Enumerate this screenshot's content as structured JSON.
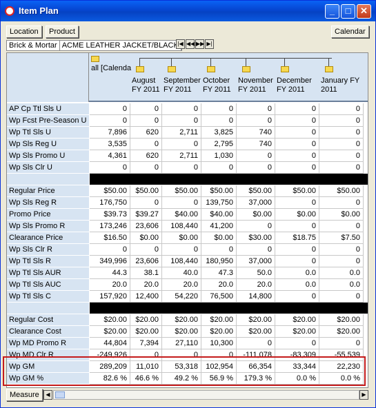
{
  "window": {
    "title": "Item Plan"
  },
  "toolbar": {
    "location": "Location",
    "product": "Product",
    "calendar": "Calendar"
  },
  "context": {
    "channel": "Brick & Mortar",
    "item": "ACME LEATHER JACKET/BLACK"
  },
  "nav": [
    "⏮",
    "⏪",
    "⏩",
    "⏭"
  ],
  "columns": [
    {
      "top": "all [Calenda",
      "line1": "",
      "line2": ""
    },
    {
      "top": "",
      "line1": "August",
      "line2": "FY 2011"
    },
    {
      "top": "",
      "line1": "September",
      "line2": "FY 2011"
    },
    {
      "top": "",
      "line1": "October",
      "line2": "FY 2011"
    },
    {
      "top": "",
      "line1": "November",
      "line2": "FY 2011"
    },
    {
      "top": "",
      "line1": "December",
      "line2": "FY 2011"
    },
    {
      "top": "",
      "line1": "January FY",
      "line2": "2011"
    }
  ],
  "rows": [
    {
      "label": "AP Cp Ttl Sls U",
      "values": [
        "0",
        "0",
        "0",
        "0",
        "0",
        "0",
        "0"
      ]
    },
    {
      "label": "Wp Fcst Pre-Season U",
      "values": [
        "0",
        "0",
        "0",
        "0",
        "0",
        "0",
        "0"
      ]
    },
    {
      "label": "Wp Ttl Sls U",
      "values": [
        "7,896",
        "620",
        "2,711",
        "3,825",
        "740",
        "0",
        "0"
      ]
    },
    {
      "label": "Wp Sls Reg U",
      "values": [
        "3,535",
        "0",
        "0",
        "2,795",
        "740",
        "0",
        "0"
      ]
    },
    {
      "label": "Wp Sls Promo U",
      "values": [
        "4,361",
        "620",
        "2,711",
        "1,030",
        "0",
        "0",
        "0"
      ]
    },
    {
      "label": "Wp Sls Clr U",
      "values": [
        "0",
        "0",
        "0",
        "0",
        "0",
        "0",
        "0"
      ]
    },
    {
      "label": "",
      "values": null
    },
    {
      "label": "Regular Price",
      "values": [
        "$50.00",
        "$50.00",
        "$50.00",
        "$50.00",
        "$50.00",
        "$50.00",
        "$50.00"
      ]
    },
    {
      "label": "Wp Sls Reg R",
      "values": [
        "176,750",
        "0",
        "0",
        "139,750",
        "37,000",
        "0",
        "0"
      ]
    },
    {
      "label": "Promo Price",
      "values": [
        "$39.73",
        "$39.27",
        "$40.00",
        "$40.00",
        "$0.00",
        "$0.00",
        "$0.00"
      ]
    },
    {
      "label": "Wp Sls Promo R",
      "values": [
        "173,246",
        "23,606",
        "108,440",
        "41,200",
        "0",
        "0",
        "0"
      ]
    },
    {
      "label": "Clearance Price",
      "values": [
        "$16.50",
        "$0.00",
        "$0.00",
        "$0.00",
        "$30.00",
        "$18.75",
        "$7.50"
      ]
    },
    {
      "label": "Wp Sls Clr R",
      "values": [
        "0",
        "0",
        "0",
        "0",
        "0",
        "0",
        "0"
      ]
    },
    {
      "label": "Wp Ttl Sls R",
      "values": [
        "349,996",
        "23,606",
        "108,440",
        "180,950",
        "37,000",
        "0",
        "0"
      ]
    },
    {
      "label": "Wp Ttl Sls AUR",
      "values": [
        "44.3",
        "38.1",
        "40.0",
        "47.3",
        "50.0",
        "0.0",
        "0.0"
      ]
    },
    {
      "label": "Wp Ttl Sls AUC",
      "values": [
        "20.0",
        "20.0",
        "20.0",
        "20.0",
        "20.0",
        "0.0",
        "0.0"
      ]
    },
    {
      "label": "Wp Ttl Sls C",
      "values": [
        "157,920",
        "12,400",
        "54,220",
        "76,500",
        "14,800",
        "0",
        "0"
      ]
    },
    {
      "label": "",
      "values": null
    },
    {
      "label": "Regular Cost",
      "values": [
        "$20.00",
        "$20.00",
        "$20.00",
        "$20.00",
        "$20.00",
        "$20.00",
        "$20.00"
      ]
    },
    {
      "label": "Clearance Cost",
      "values": [
        "$20.00",
        "$20.00",
        "$20.00",
        "$20.00",
        "$20.00",
        "$20.00",
        "$20.00"
      ]
    },
    {
      "label": "Wp MD Promo R",
      "values": [
        "44,804",
        "7,394",
        "27,110",
        "10,300",
        "0",
        "0",
        "0"
      ]
    },
    {
      "label": "Wp MD Clr R",
      "values": [
        "-249,926",
        "0",
        "0",
        "0",
        "-111,078",
        "-83,309",
        "-55,539"
      ]
    },
    {
      "label": "Wp GM",
      "values": [
        "289,209",
        "11,010",
        "53,318",
        "102,954",
        "66,354",
        "33,344",
        "22,230"
      ]
    },
    {
      "label": "Wp GM %",
      "values": [
        "82.6 %",
        "46.6 %",
        "49.2 %",
        "56.9 %",
        "179.3 %",
        "0.0 %",
        "0.0 %"
      ]
    }
  ],
  "status": {
    "measure": "Measure"
  }
}
